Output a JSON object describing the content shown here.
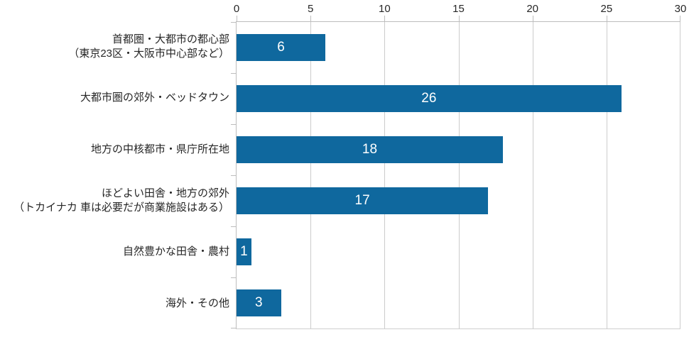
{
  "chart_data": {
    "type": "bar",
    "orientation": "horizontal",
    "title": "",
    "categories": [
      {
        "lines": [
          "首都圏・大都市の都心部",
          "（東京23区・大阪市中心部など）"
        ]
      },
      {
        "lines": [
          "大都市圏の郊外・ベッドタウン"
        ]
      },
      {
        "lines": [
          "地方の中核都市・県庁所在地"
        ]
      },
      {
        "lines": [
          "ほどよい田舎・地方の郊外",
          "（トカイナカ 車は必要だが商業施設はある）"
        ]
      },
      {
        "lines": [
          "自然豊かな田舎・農村"
        ]
      },
      {
        "lines": [
          "海外・その他"
        ]
      }
    ],
    "values": [
      6,
      26,
      18,
      17,
      1,
      3
    ],
    "value_labels": [
      "6",
      "26",
      "18",
      "17",
      "1",
      "3"
    ],
    "xlim": [
      0,
      30
    ],
    "x_ticks": [
      "0",
      "5",
      "10",
      "15",
      "20",
      "25",
      "30"
    ],
    "grid": "vertical-only",
    "value_axis_position": "top",
    "legend": "none",
    "colors": {
      "bar": "#0F689E",
      "gridline": "#CCCCCC",
      "axis_line": "#BDBDBD",
      "tick_label": "#262626",
      "category_label": "#262626",
      "value_label": "#FFFFFF",
      "background": "#FFFFFF"
    }
  }
}
